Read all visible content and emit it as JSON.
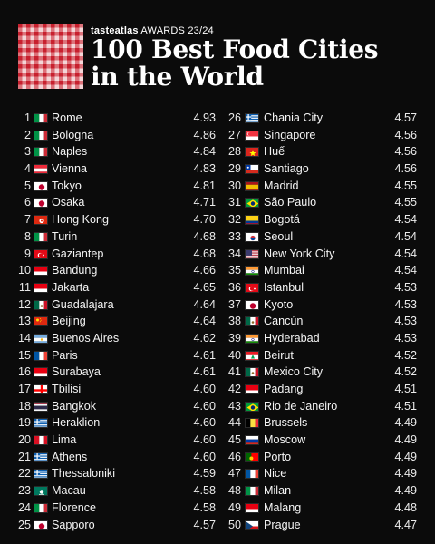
{
  "header": {
    "brand_name": "tasteatlas",
    "brand_award": "AWARDS 23/24",
    "title_line1": "100 Best Food Cities",
    "title_line2": "in the World",
    "logo": "checkered-tablecloth-icon"
  },
  "colors": {
    "background": "#0b0b0b",
    "text": "#f2f2f2",
    "logo_red": "#c8202e"
  },
  "left_column": [
    {
      "rank": "1",
      "flag": "it",
      "city": "Rome",
      "score": "4.93"
    },
    {
      "rank": "2",
      "flag": "it",
      "city": "Bologna",
      "score": "4.86"
    },
    {
      "rank": "3",
      "flag": "it",
      "city": "Naples",
      "score": "4.84"
    },
    {
      "rank": "4",
      "flag": "at",
      "city": "Vienna",
      "score": "4.83"
    },
    {
      "rank": "5",
      "flag": "jp",
      "city": "Tokyo",
      "score": "4.81"
    },
    {
      "rank": "6",
      "flag": "jp",
      "city": "Osaka",
      "score": "4.71"
    },
    {
      "rank": "7",
      "flag": "hk",
      "city": "Hong Kong",
      "score": "4.70"
    },
    {
      "rank": "8",
      "flag": "it",
      "city": "Turin",
      "score": "4.68"
    },
    {
      "rank": "9",
      "flag": "tr",
      "city": "Gaziantep",
      "score": "4.68"
    },
    {
      "rank": "10",
      "flag": "id",
      "city": "Bandung",
      "score": "4.66"
    },
    {
      "rank": "11",
      "flag": "id",
      "city": "Jakarta",
      "score": "4.65"
    },
    {
      "rank": "12",
      "flag": "mx",
      "city": "Guadalajara",
      "score": "4.64"
    },
    {
      "rank": "13",
      "flag": "cn",
      "city": "Beijing",
      "score": "4.64"
    },
    {
      "rank": "14",
      "flag": "ar",
      "city": "Buenos Aires",
      "score": "4.62"
    },
    {
      "rank": "15",
      "flag": "fr",
      "city": "Paris",
      "score": "4.61"
    },
    {
      "rank": "16",
      "flag": "id",
      "city": "Surabaya",
      "score": "4.61"
    },
    {
      "rank": "17",
      "flag": "ge",
      "city": "Tbilisi",
      "score": "4.60"
    },
    {
      "rank": "18",
      "flag": "th",
      "city": "Bangkok",
      "score": "4.60"
    },
    {
      "rank": "19",
      "flag": "gr",
      "city": "Heraklion",
      "score": "4.60"
    },
    {
      "rank": "20",
      "flag": "pe",
      "city": "Lima",
      "score": "4.60"
    },
    {
      "rank": "21",
      "flag": "gr",
      "city": "Athens",
      "score": "4.60"
    },
    {
      "rank": "22",
      "flag": "gr",
      "city": "Thessaloniki",
      "score": "4.59"
    },
    {
      "rank": "23",
      "flag": "mo",
      "city": "Macau",
      "score": "4.58"
    },
    {
      "rank": "24",
      "flag": "it",
      "city": "Florence",
      "score": "4.58"
    },
    {
      "rank": "25",
      "flag": "jp",
      "city": "Sapporo",
      "score": "4.57"
    }
  ],
  "right_column": [
    {
      "rank": "26",
      "flag": "gr",
      "city": "Chania City",
      "score": "4.57"
    },
    {
      "rank": "27",
      "flag": "sg",
      "city": "Singapore",
      "score": "4.56"
    },
    {
      "rank": "28",
      "flag": "vn",
      "city": "Huế",
      "score": "4.56"
    },
    {
      "rank": "29",
      "flag": "cl",
      "city": "Santiago",
      "score": "4.56"
    },
    {
      "rank": "30",
      "flag": "es",
      "city": "Madrid",
      "score": "4.55"
    },
    {
      "rank": "31",
      "flag": "br",
      "city": "São Paulo",
      "score": "4.55"
    },
    {
      "rank": "32",
      "flag": "co",
      "city": "Bogotá",
      "score": "4.54"
    },
    {
      "rank": "33",
      "flag": "kr",
      "city": "Seoul",
      "score": "4.54"
    },
    {
      "rank": "34",
      "flag": "us",
      "city": "New York City",
      "score": "4.54"
    },
    {
      "rank": "35",
      "flag": "in",
      "city": "Mumbai",
      "score": "4.54"
    },
    {
      "rank": "36",
      "flag": "tr",
      "city": "Istanbul",
      "score": "4.53"
    },
    {
      "rank": "37",
      "flag": "jp",
      "city": "Kyoto",
      "score": "4.53"
    },
    {
      "rank": "38",
      "flag": "mx",
      "city": "Cancún",
      "score": "4.53"
    },
    {
      "rank": "39",
      "flag": "in",
      "city": "Hyderabad",
      "score": "4.53"
    },
    {
      "rank": "40",
      "flag": "lb",
      "city": "Beirut",
      "score": "4.52"
    },
    {
      "rank": "41",
      "flag": "mx",
      "city": "Mexico City",
      "score": "4.52"
    },
    {
      "rank": "42",
      "flag": "id",
      "city": "Padang",
      "score": "4.51"
    },
    {
      "rank": "43",
      "flag": "br",
      "city": "Rio de Janeiro",
      "score": "4.51"
    },
    {
      "rank": "44",
      "flag": "be",
      "city": "Brussels",
      "score": "4.49"
    },
    {
      "rank": "45",
      "flag": "ru",
      "city": "Moscow",
      "score": "4.49"
    },
    {
      "rank": "46",
      "flag": "pt",
      "city": "Porto",
      "score": "4.49"
    },
    {
      "rank": "47",
      "flag": "fr",
      "city": "Nice",
      "score": "4.49"
    },
    {
      "rank": "48",
      "flag": "it",
      "city": "Milan",
      "score": "4.49"
    },
    {
      "rank": "49",
      "flag": "id",
      "city": "Malang",
      "score": "4.48"
    },
    {
      "rank": "50",
      "flag": "cz",
      "city": "Prague",
      "score": "4.47"
    }
  ]
}
